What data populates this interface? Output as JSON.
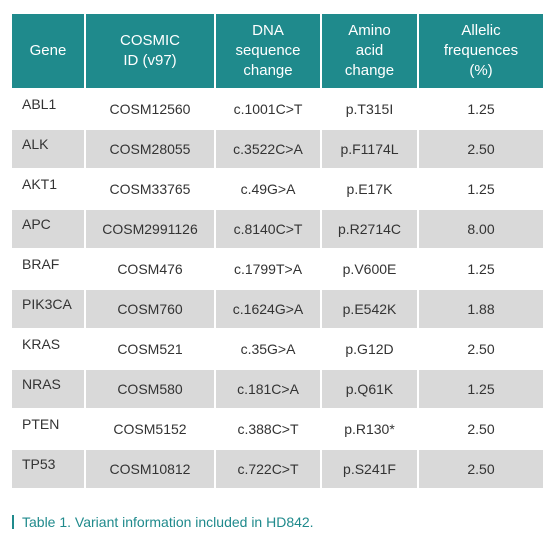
{
  "table": {
    "headers": [
      "Gene",
      "COSMIC ID (v97)",
      "DNA sequence change",
      "Amino acid change",
      "Allelic frequences (%)"
    ],
    "header_lines": [
      [
        "Gene"
      ],
      [
        "COSMIC",
        "ID (v97)"
      ],
      [
        "DNA",
        "sequence",
        "change"
      ],
      [
        "Amino",
        "acid",
        "change"
      ],
      [
        "Allelic",
        "frequences",
        "(%)"
      ]
    ],
    "rows": [
      [
        "ABL1",
        "COSM12560",
        "c.1001C>T",
        "p.T315I",
        "1.25"
      ],
      [
        "ALK",
        "COSM28055",
        "c.3522C>A",
        "p.F1174L",
        "2.50"
      ],
      [
        "AKT1",
        "COSM33765",
        "c.49G>A",
        "p.E17K",
        "1.25"
      ],
      [
        "APC",
        "COSM2991126",
        "c.8140C>T",
        "p.R2714C",
        "8.00"
      ],
      [
        "BRAF",
        "COSM476",
        "c.1799T>A",
        "p.V600E",
        "1.25"
      ],
      [
        "PIK3CA",
        "COSM760",
        "c.1624G>A",
        "p.E542K",
        "1.88"
      ],
      [
        "KRAS",
        "COSM521",
        "c.35G>A",
        "p.G12D",
        "2.50"
      ],
      [
        "NRAS",
        "COSM580",
        "c.181C>A",
        "p.Q61K",
        "1.25"
      ],
      [
        "PTEN",
        "COSM5152",
        "c.388C>T",
        "p.R130*",
        "2.50"
      ],
      [
        "TP53",
        "COSM10812",
        "c.722C>T",
        "p.S241F",
        "2.50"
      ]
    ]
  },
  "caption": "Table 1. Variant information included in HD842.",
  "colors": {
    "header_bg": "#1f8a8c",
    "stripe": "#d9d9d9",
    "caption": "#1f8a8c"
  }
}
